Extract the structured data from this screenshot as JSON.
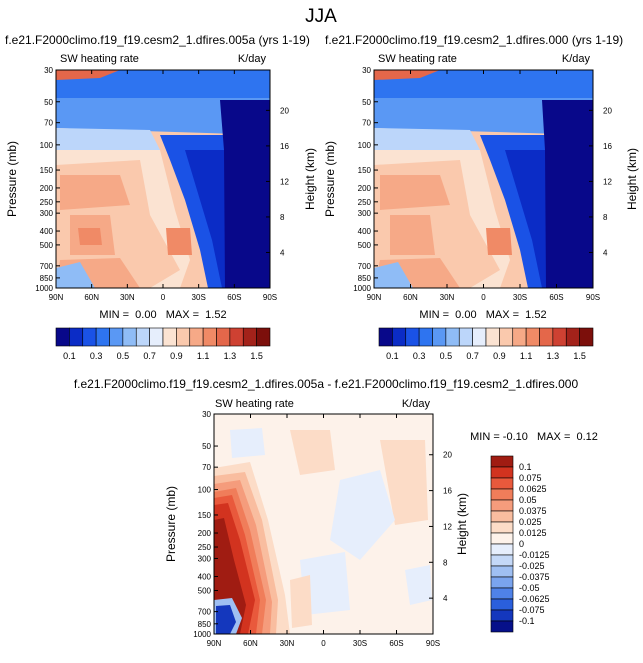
{
  "page_title": "JJA",
  "chart_data": [
    {
      "type": "heatmap",
      "title": "f.e21.F2000climo.f19_f19.cesm2_1.dfires.005a (yrs 1-19)",
      "subtitle_left": "SW heating rate",
      "subtitle_right": "K/day",
      "xlabel": "",
      "ylabel": "Pressure (mb)",
      "ylabel_right": "Height (km)",
      "x_ticks": [
        "90N",
        "60N",
        "30N",
        "0",
        "30S",
        "60S",
        "90S"
      ],
      "y_ticks": [
        "30",
        "50",
        "70",
        "100",
        "150",
        "200",
        "250",
        "300",
        "400",
        "500",
        "700",
        "850",
        "1000"
      ],
      "height_ticks": [
        "20",
        "16",
        "12",
        "8",
        "4"
      ],
      "xlim": [
        90,
        -90
      ],
      "ylim": [
        30,
        1000
      ],
      "stats_text": "MIN =  0.00   MAX =  1.52",
      "min": 0.0,
      "max": 1.52,
      "colorbar_labels": [
        "0.1",
        "0.3",
        "0.5",
        "0.7",
        "0.9",
        "1.1",
        "1.3",
        "1.5"
      ],
      "colorbar_levels": [
        0.1,
        0.2,
        0.3,
        0.4,
        0.5,
        0.6,
        0.7,
        0.8,
        0.9,
        1.0,
        1.1,
        1.2,
        1.3,
        1.4,
        1.5
      ]
    },
    {
      "type": "heatmap",
      "title": "f.e21.F2000climo.f19_f19.cesm2_1.dfires.000 (yrs 1-19)",
      "subtitle_left": "SW heating rate",
      "subtitle_right": "K/day",
      "xlabel": "",
      "ylabel": "Pressure (mb)",
      "ylabel_right": "Height (km)",
      "x_ticks": [
        "90N",
        "60N",
        "30N",
        "0",
        "30S",
        "60S",
        "90S"
      ],
      "y_ticks": [
        "30",
        "50",
        "70",
        "100",
        "150",
        "200",
        "250",
        "300",
        "400",
        "500",
        "700",
        "850",
        "1000"
      ],
      "height_ticks": [
        "20",
        "16",
        "12",
        "8",
        "4"
      ],
      "xlim": [
        90,
        -90
      ],
      "ylim": [
        30,
        1000
      ],
      "stats_text": "MIN =  0.00   MAX =  1.52",
      "min": 0.0,
      "max": 1.52,
      "colorbar_labels": [
        "0.1",
        "0.3",
        "0.5",
        "0.7",
        "0.9",
        "1.1",
        "1.3",
        "1.5"
      ],
      "colorbar_levels": [
        0.1,
        0.2,
        0.3,
        0.4,
        0.5,
        0.6,
        0.7,
        0.8,
        0.9,
        1.0,
        1.1,
        1.2,
        1.3,
        1.4,
        1.5
      ]
    },
    {
      "type": "heatmap",
      "title": "f.e21.F2000climo.f19_f19.cesm2_1.dfires.005a - f.e21.F2000climo.f19_f19.cesm2_1.dfires.000",
      "subtitle_left": "SW heating rate",
      "subtitle_right": "K/day",
      "xlabel": "",
      "ylabel": "Pressure (mb)",
      "ylabel_right": "Height (km)",
      "x_ticks": [
        "90N",
        "60N",
        "30N",
        "0",
        "30S",
        "60S",
        "90S"
      ],
      "y_ticks": [
        "30",
        "50",
        "70",
        "100",
        "150",
        "200",
        "250",
        "300",
        "400",
        "500",
        "700",
        "850",
        "1000"
      ],
      "height_ticks": [
        "20",
        "16",
        "12",
        "8",
        "4"
      ],
      "xlim": [
        90,
        -90
      ],
      "ylim": [
        30,
        1000
      ],
      "stats_text": "MIN = -0.10   MAX =  0.12",
      "min": -0.1,
      "max": 0.12,
      "colorbar_labels": [
        "0.1",
        "0.075",
        "0.0625",
        "0.05",
        "0.0375",
        "0.025",
        "0.0125",
        "0",
        "-0.0125",
        "-0.025",
        "-0.0375",
        "-0.05",
        "-0.0625",
        "-0.075",
        "-0.1"
      ],
      "colorbar_levels": [
        0.1,
        0.075,
        0.0625,
        0.05,
        0.0375,
        0.025,
        0.0125,
        0,
        -0.0125,
        -0.025,
        -0.0375,
        -0.05,
        -0.0625,
        -0.075,
        -0.1
      ]
    }
  ],
  "colors": {
    "seq": [
      "#08088a",
      "#0b2cc6",
      "#1a52e6",
      "#2e74f0",
      "#5a98f4",
      "#8fbcf6",
      "#bcd6fa",
      "#e6eefc",
      "#fbe3d2",
      "#fac9ad",
      "#f6a987",
      "#f08a66",
      "#e4674a",
      "#ce4132",
      "#a3221a",
      "#7c0f0b"
    ],
    "div": [
      "#a01c12",
      "#d2331f",
      "#e9593c",
      "#f07d5a",
      "#f59c7c",
      "#f9bd9f",
      "#fcdcc7",
      "#fdf2ea",
      "#e6eefc",
      "#c4d8f7",
      "#9fbff2",
      "#7aa4ee",
      "#4f82e8",
      "#2a5fdc",
      "#1437bd",
      "#06108a"
    ]
  }
}
